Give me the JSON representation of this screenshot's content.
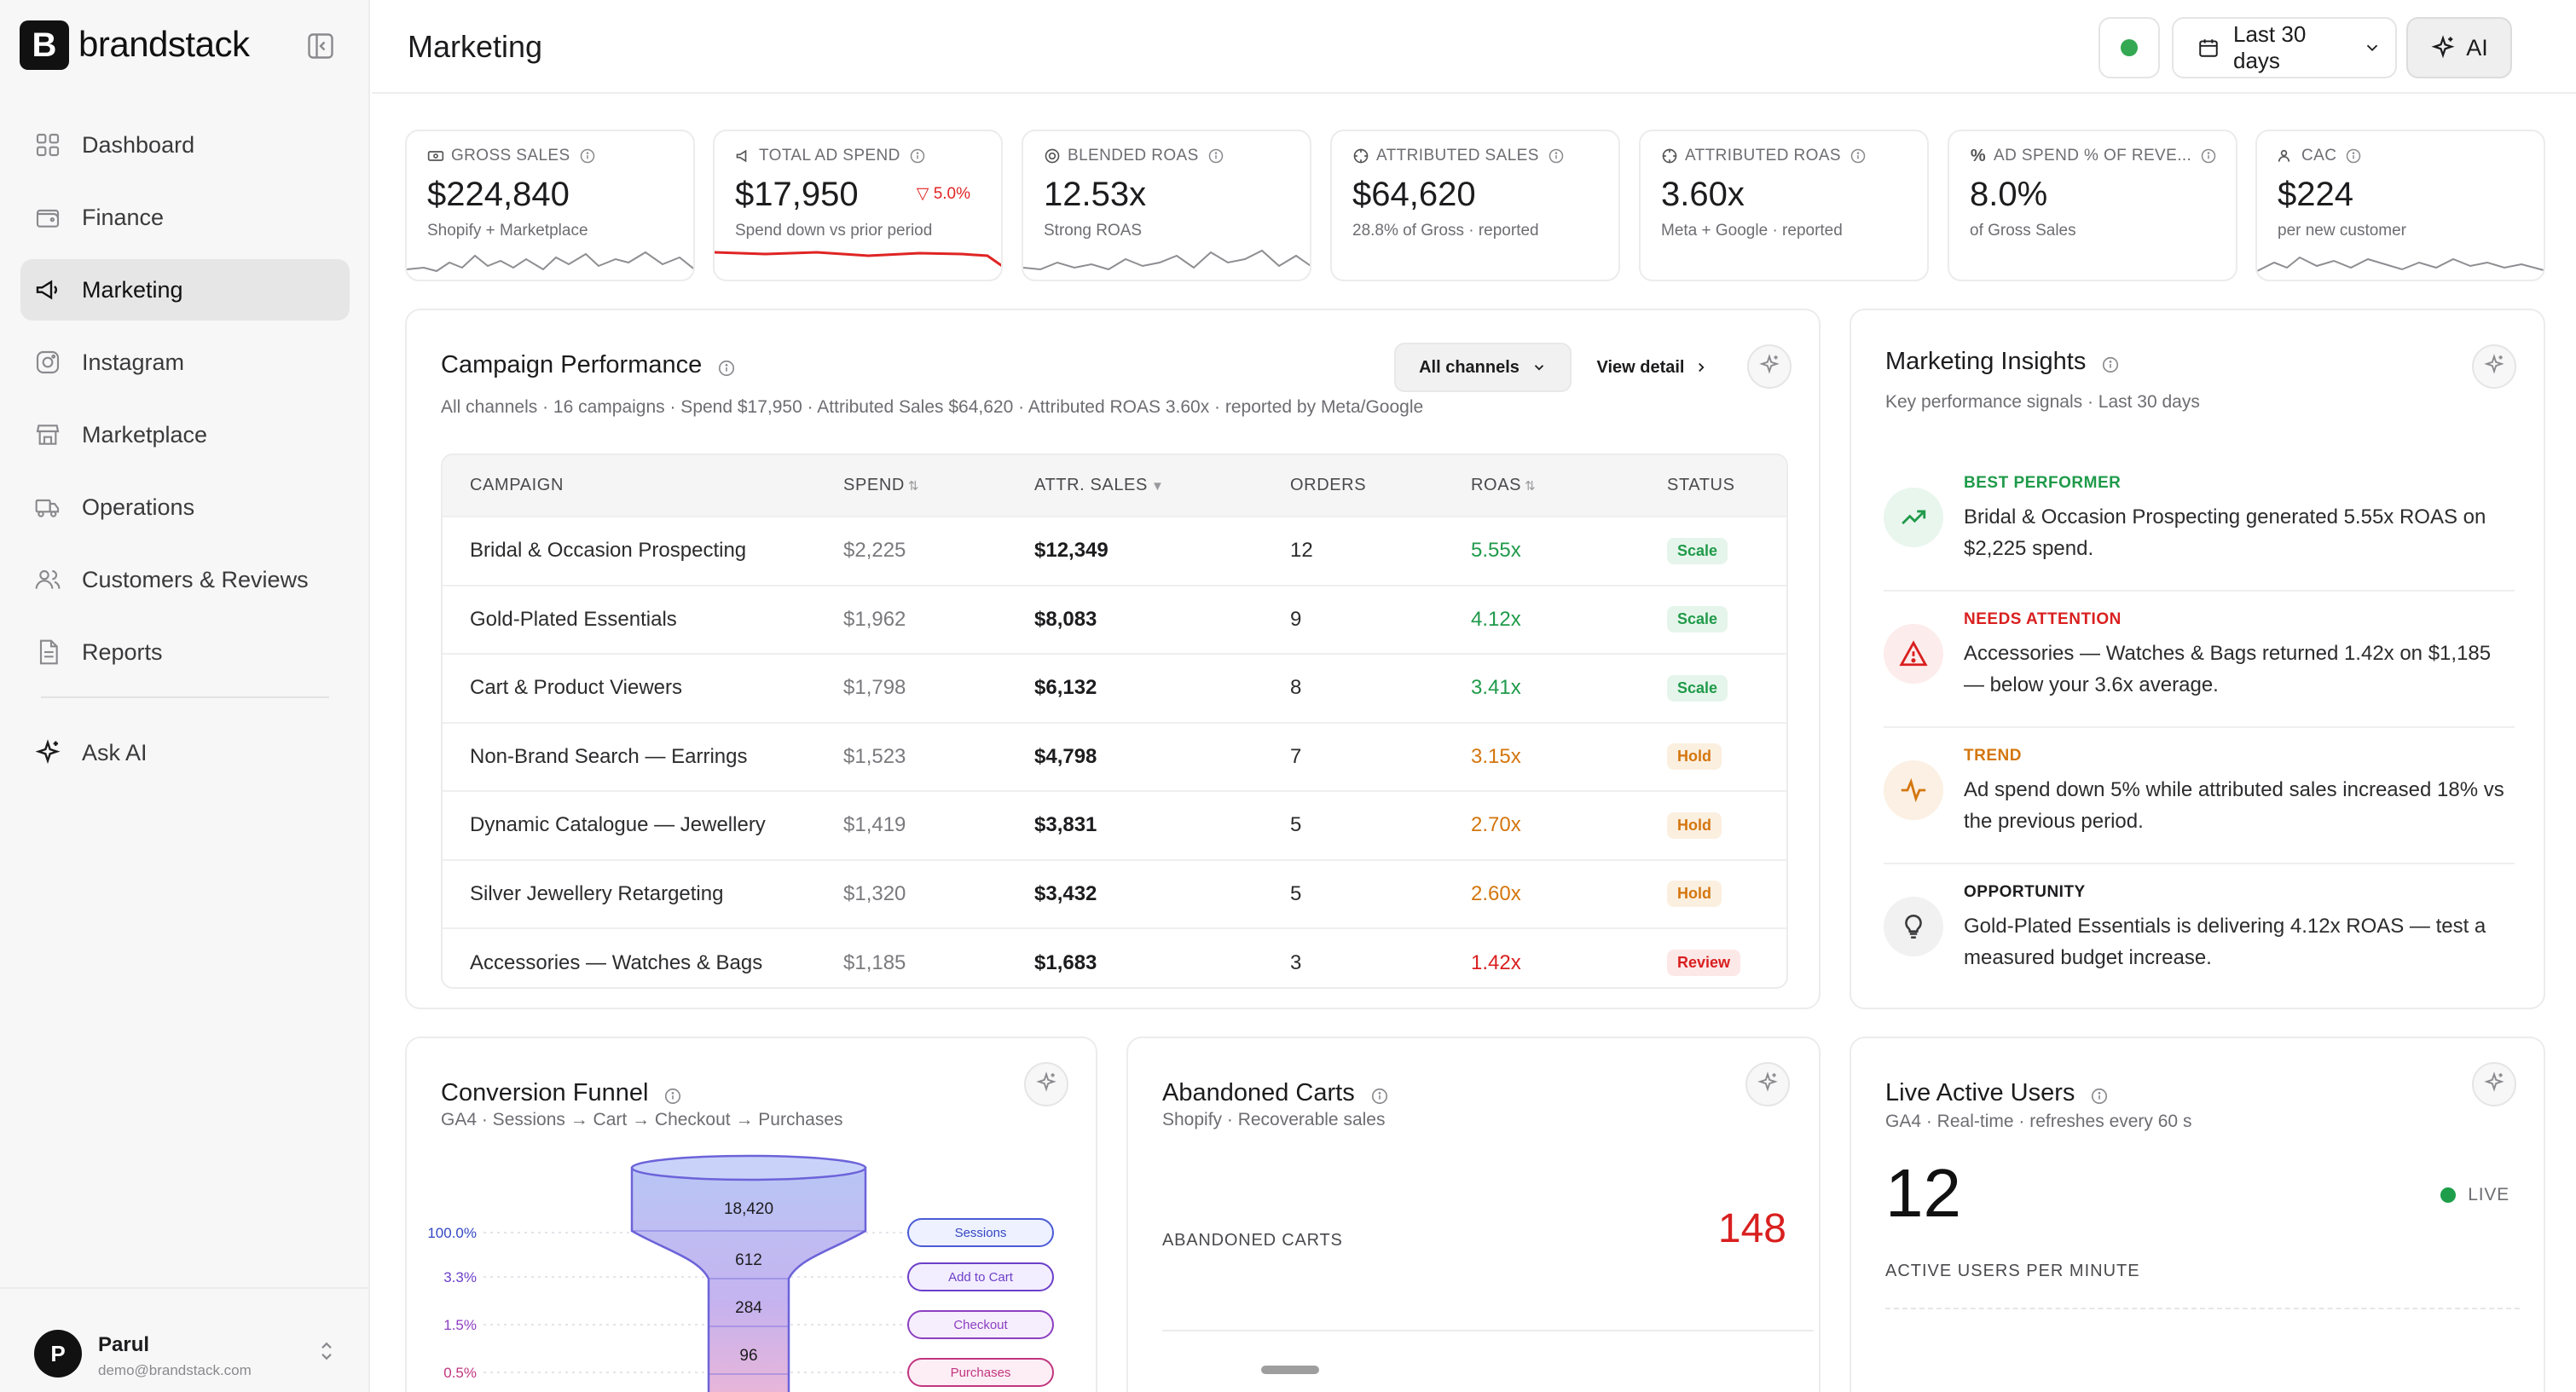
{
  "app": {
    "logo_letter": "B",
    "logo_text": "brandstack"
  },
  "sidebar": {
    "items": [
      {
        "label": "Dashboard",
        "icon": "grid-icon"
      },
      {
        "label": "Finance",
        "icon": "wallet-icon"
      },
      {
        "label": "Marketing",
        "icon": "megaphone-icon",
        "active": true
      },
      {
        "label": "Instagram",
        "icon": "instagram-icon"
      },
      {
        "label": "Marketplace",
        "icon": "store-icon"
      },
      {
        "label": "Operations",
        "icon": "truck-icon"
      },
      {
        "label": "Customers & Reviews",
        "icon": "users-icon"
      },
      {
        "label": "Reports",
        "icon": "document-icon"
      }
    ],
    "ask_ai": "Ask AI",
    "user": {
      "initial": "P",
      "name": "Parul",
      "email": "demo@brandstack.com"
    }
  },
  "header": {
    "title": "Marketing",
    "date_range": "Last 30 days",
    "ai_label": "AI",
    "status_color": "#34a853"
  },
  "kpis": [
    {
      "label": "GROSS SALES",
      "value": "$224,840",
      "sub": "Shopify + Marketplace",
      "delta": ""
    },
    {
      "label": "TOTAL AD SPEND",
      "value": "$17,950",
      "sub": "Spend down vs prior period",
      "delta": "▽ 5.0%"
    },
    {
      "label": "BLENDED ROAS",
      "value": "12.53x",
      "sub": "Strong ROAS",
      "delta": ""
    },
    {
      "label": "ATTRIBUTED SALES",
      "value": "$64,620",
      "sub": "28.8% of Gross · reported",
      "delta": ""
    },
    {
      "label": "ATTRIBUTED ROAS",
      "value": "3.60x",
      "sub": "Meta + Google · reported",
      "delta": ""
    },
    {
      "label": "AD SPEND % OF REVE...",
      "value": "8.0%",
      "sub": "of Gross Sales",
      "delta": ""
    },
    {
      "label": "CAC",
      "value": "$224",
      "sub": "per new customer",
      "delta": ""
    }
  ],
  "campaign": {
    "title": "Campaign Performance",
    "subtitle": "All channels · 16 campaigns · Spend $17,950 · Attributed Sales $64,620 · Attributed ROAS 3.60x · reported by Meta/Google",
    "channel_filter": "All channels",
    "view_detail": "View detail",
    "columns": [
      "CAMPAIGN",
      "SPEND",
      "ATTR. SALES",
      "ORDERS",
      "ROAS",
      "STATUS"
    ],
    "rows": [
      {
        "campaign": "Bridal & Occasion Prospecting",
        "spend": "$2,225",
        "sales": "$12,349",
        "orders": "12",
        "roas": "5.55x",
        "status": "Scale"
      },
      {
        "campaign": "Gold-Plated Essentials",
        "spend": "$1,962",
        "sales": "$8,083",
        "orders": "9",
        "roas": "4.12x",
        "status": "Scale"
      },
      {
        "campaign": "Cart & Product Viewers",
        "spend": "$1,798",
        "sales": "$6,132",
        "orders": "8",
        "roas": "3.41x",
        "status": "Scale"
      },
      {
        "campaign": "Non-Brand Search — Earrings",
        "spend": "$1,523",
        "sales": "$4,798",
        "orders": "7",
        "roas": "3.15x",
        "status": "Hold"
      },
      {
        "campaign": "Dynamic Catalogue — Jewellery",
        "spend": "$1,419",
        "sales": "$3,831",
        "orders": "5",
        "roas": "2.70x",
        "status": "Hold"
      },
      {
        "campaign": "Silver Jewellery Retargeting",
        "spend": "$1,320",
        "sales": "$3,432",
        "orders": "5",
        "roas": "2.60x",
        "status": "Hold"
      },
      {
        "campaign": "Accessories — Watches & Bags",
        "spend": "$1,185",
        "sales": "$1,683",
        "orders": "3",
        "roas": "1.42x",
        "status": "Review"
      }
    ],
    "colors": {
      "scale": "#1f9a4a",
      "hold": "#d4760e",
      "review": "#d91f1f"
    }
  },
  "insights": {
    "title": "Marketing Insights",
    "subtitle": "Key performance signals · Last 30 days",
    "items": [
      {
        "kind": "BEST PERFORMER",
        "text": "Bridal & Occasion Prospecting generated 5.55x ROAS on $2,225 spend.",
        "color": "#1f9a4a",
        "icon": "trend-up-icon"
      },
      {
        "kind": "NEEDS ATTENTION",
        "text": "Accessories — Watches & Bags returned 1.42x on $1,185 — below your 3.6x average.",
        "color": "#d91f1f",
        "icon": "warning-icon"
      },
      {
        "kind": "TREND",
        "text": "Ad spend down 5% while attributed sales increased 18% vs the previous period.",
        "color": "#d4760e",
        "icon": "pulse-icon"
      },
      {
        "kind": "OPPORTUNITY",
        "text": "Gold-Plated Essentials is delivering 4.12x ROAS — test a measured budget increase.",
        "color": "#1c1c1e",
        "icon": "lightbulb-icon"
      }
    ]
  },
  "funnel": {
    "title": "Conversion Funnel",
    "subtitle": "GA4 · Sessions → Cart → Checkout → Purchases",
    "stages": [
      {
        "name": "Sessions",
        "count": "18,420",
        "pct": "100.0%"
      },
      {
        "name": "Add to Cart",
        "count": "612",
        "pct": "3.3%"
      },
      {
        "name": "Checkout",
        "count": "284",
        "pct": "1.5%"
      },
      {
        "name": "Purchases",
        "count": "96",
        "pct": "0.5%"
      }
    ]
  },
  "abandoned": {
    "title": "Abandoned Carts",
    "subtitle": "Shopify · Recoverable sales",
    "label": "ABANDONED CARTS",
    "value": "148"
  },
  "live": {
    "title": "Live Active Users",
    "subtitle": "GA4 · Real-time · refreshes every 60 s",
    "value": "12",
    "badge": "LIVE",
    "label": "ACTIVE USERS PER MINUTE"
  }
}
